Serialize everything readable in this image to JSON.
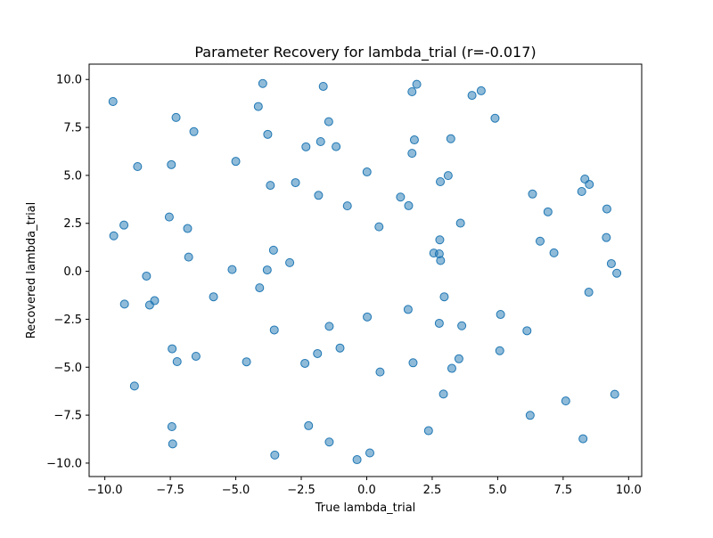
{
  "chart_data": {
    "type": "scatter",
    "title": "Parameter Recovery for lambda_trial (r=-0.017)",
    "xlabel": "True lambda_trial",
    "ylabel": "Recovered lambda_trial",
    "xlim": [
      -10.6,
      10.5
    ],
    "ylim": [
      -10.7,
      10.8
    ],
    "xticks": [
      -10.0,
      -7.5,
      -5.0,
      -2.5,
      0.0,
      2.5,
      5.0,
      7.5,
      10.0
    ],
    "yticks": [
      -10.0,
      -7.5,
      -5.0,
      -2.5,
      0.0,
      2.5,
      5.0,
      7.5,
      10.0
    ],
    "xtick_labels": [
      "−10.0",
      "−7.5",
      "−5.0",
      "−2.5",
      "0.0",
      "2.5",
      "5.0",
      "7.5",
      "10.0"
    ],
    "ytick_labels": [
      "−10.0",
      "−7.5",
      "−5.0",
      "−2.5",
      "0.0",
      "2.5",
      "5.0",
      "7.5",
      "10.0"
    ],
    "grid": false,
    "marker_color": "#1f77b4",
    "marker_alpha": 0.5,
    "points": [
      {
        "x": -9.69,
        "y": 8.85
      },
      {
        "x": -7.28,
        "y": 8.02
      },
      {
        "x": -6.6,
        "y": 7.28
      },
      {
        "x": -8.75,
        "y": 5.46
      },
      {
        "x": -7.46,
        "y": 5.56
      },
      {
        "x": -5.0,
        "y": 5.73
      },
      {
        "x": -3.97,
        "y": 9.79
      },
      {
        "x": -4.14,
        "y": 8.59
      },
      {
        "x": -3.78,
        "y": 7.14
      },
      {
        "x": -1.66,
        "y": 9.64
      },
      {
        "x": -1.45,
        "y": 7.8
      },
      {
        "x": -2.32,
        "y": 6.49
      },
      {
        "x": -1.76,
        "y": 6.76
      },
      {
        "x": -1.17,
        "y": 6.5
      },
      {
        "x": -3.68,
        "y": 4.48
      },
      {
        "x": -2.72,
        "y": 4.62
      },
      {
        "x": -1.84,
        "y": 3.96
      },
      {
        "x": -0.74,
        "y": 3.41
      },
      {
        "x": 0.01,
        "y": 5.18
      },
      {
        "x": 1.73,
        "y": 9.36
      },
      {
        "x": 1.91,
        "y": 9.75
      },
      {
        "x": 1.82,
        "y": 6.85
      },
      {
        "x": 1.73,
        "y": 6.15
      },
      {
        "x": 3.21,
        "y": 6.91
      },
      {
        "x": 4.02,
        "y": 9.17
      },
      {
        "x": 4.37,
        "y": 9.41
      },
      {
        "x": 4.9,
        "y": 7.98
      },
      {
        "x": 2.81,
        "y": 4.67
      },
      {
        "x": 3.11,
        "y": 4.99
      },
      {
        "x": 1.29,
        "y": 3.87
      },
      {
        "x": 1.6,
        "y": 3.42
      },
      {
        "x": 3.58,
        "y": 2.51
      },
      {
        "x": 0.47,
        "y": 2.32
      },
      {
        "x": -9.66,
        "y": 1.85
      },
      {
        "x": -9.27,
        "y": 2.41
      },
      {
        "x": -7.54,
        "y": 2.83
      },
      {
        "x": -6.84,
        "y": 2.23
      },
      {
        "x": -6.8,
        "y": 0.74
      },
      {
        "x": -3.56,
        "y": 1.1
      },
      {
        "x": -5.14,
        "y": 0.09
      },
      {
        "x": -3.8,
        "y": 0.07
      },
      {
        "x": -2.94,
        "y": 0.45
      },
      {
        "x": -8.41,
        "y": -0.25
      },
      {
        "x": -4.09,
        "y": -0.86
      },
      {
        "x": -8.1,
        "y": -1.53
      },
      {
        "x": -8.29,
        "y": -1.76
      },
      {
        "x": -9.25,
        "y": -1.71
      },
      {
        "x": -5.85,
        "y": -1.33
      },
      {
        "x": 2.56,
        "y": 0.95
      },
      {
        "x": 2.79,
        "y": 1.64
      },
      {
        "x": 2.77,
        "y": 0.91
      },
      {
        "x": 2.82,
        "y": 0.56
      },
      {
        "x": 2.96,
        "y": -1.33
      },
      {
        "x": 1.58,
        "y": -1.99
      },
      {
        "x": 0.02,
        "y": -2.38
      },
      {
        "x": -1.43,
        "y": -2.87
      },
      {
        "x": -3.53,
        "y": -3.06
      },
      {
        "x": 2.77,
        "y": -2.71
      },
      {
        "x": 3.63,
        "y": -2.84
      },
      {
        "x": 5.11,
        "y": -2.25
      },
      {
        "x": 6.33,
        "y": 4.03
      },
      {
        "x": 6.92,
        "y": 3.1
      },
      {
        "x": 8.33,
        "y": 4.81
      },
      {
        "x": 8.5,
        "y": 4.53
      },
      {
        "x": 8.21,
        "y": 4.16
      },
      {
        "x": 9.17,
        "y": 3.25
      },
      {
        "x": 6.62,
        "y": 1.57
      },
      {
        "x": 7.15,
        "y": 0.96
      },
      {
        "x": 9.15,
        "y": 1.76
      },
      {
        "x": 9.34,
        "y": 0.4
      },
      {
        "x": 9.55,
        "y": -0.1
      },
      {
        "x": 8.48,
        "y": -1.09
      },
      {
        "x": 6.12,
        "y": -3.1
      },
      {
        "x": 5.08,
        "y": -4.14
      },
      {
        "x": -7.43,
        "y": -4.04
      },
      {
        "x": -7.24,
        "y": -4.71
      },
      {
        "x": -6.52,
        "y": -4.43
      },
      {
        "x": -4.59,
        "y": -4.72
      },
      {
        "x": -1.88,
        "y": -4.29
      },
      {
        "x": -1.02,
        "y": -4.0
      },
      {
        "x": -2.36,
        "y": -4.8
      },
      {
        "x": 0.51,
        "y": -5.25
      },
      {
        "x": 1.77,
        "y": -4.77
      },
      {
        "x": 3.52,
        "y": -4.56
      },
      {
        "x": 3.25,
        "y": -5.06
      },
      {
        "x": -8.87,
        "y": -5.98
      },
      {
        "x": 2.93,
        "y": -6.4
      },
      {
        "x": 9.47,
        "y": -6.41
      },
      {
        "x": 7.6,
        "y": -6.76
      },
      {
        "x": 6.24,
        "y": -7.51
      },
      {
        "x": -7.44,
        "y": -8.1
      },
      {
        "x": -2.22,
        "y": -8.05
      },
      {
        "x": 2.36,
        "y": -8.31
      },
      {
        "x": 8.26,
        "y": -8.73
      },
      {
        "x": -7.41,
        "y": -9.0
      },
      {
        "x": -1.43,
        "y": -8.9
      },
      {
        "x": -3.51,
        "y": -9.58
      },
      {
        "x": 0.12,
        "y": -9.47
      },
      {
        "x": -0.37,
        "y": -9.82
      }
    ]
  }
}
